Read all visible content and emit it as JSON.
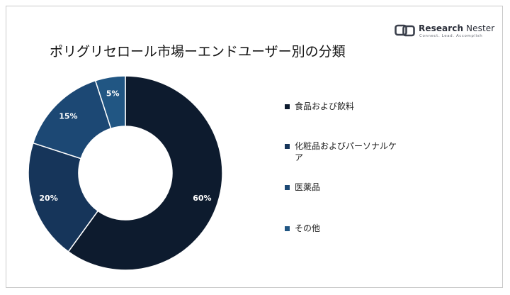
{
  "title": "ポリグリセロール市場ーエンドユーザー別の分類",
  "logo": {
    "name_bold": "Research",
    "name_rest": " Nester",
    "tagline": "Connect. Lead. Accomplish"
  },
  "colors": {
    "background": "#ffffff",
    "border": "#c9c9c9",
    "label_text": "#ffffff"
  },
  "chart_data": {
    "type": "pie",
    "donut": true,
    "title": "ポリグリセロール市場ーエンドユーザー別の分類",
    "unit": "%",
    "legend_position": "right",
    "slices": [
      {
        "label": "食品および飲料",
        "value": 60,
        "display": "60%",
        "color": "#0d1b2e"
      },
      {
        "label": "化粧品およびパーソナルケア",
        "value": 20,
        "display": "20%",
        "color": "#16355a"
      },
      {
        "label": "医薬品",
        "value": 15,
        "display": "15%",
        "color": "#1c4874"
      },
      {
        "label": "その他",
        "value": 5,
        "display": "5%",
        "color": "#215683"
      }
    ]
  }
}
